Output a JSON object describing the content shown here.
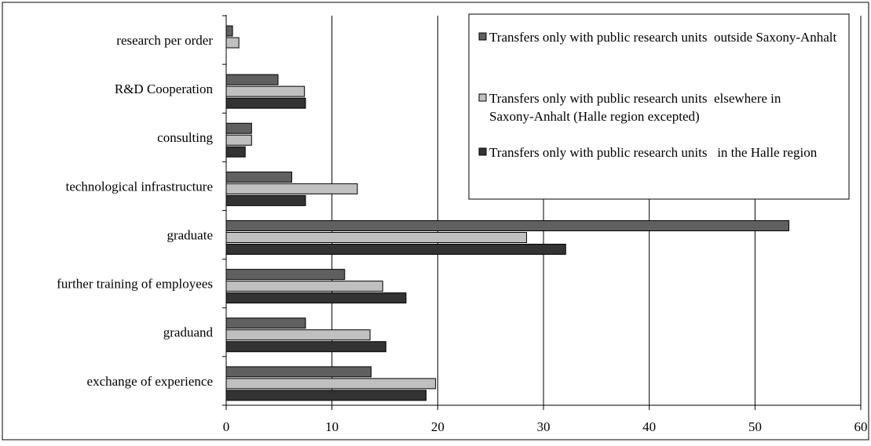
{
  "chart_data": {
    "type": "bar",
    "orientation": "horizontal",
    "categories": [
      "research per order",
      "R&D Cooperation",
      "consulting",
      "technological infrastructure",
      "graduate",
      "further training of employees",
      "graduand",
      "exchange of experience"
    ],
    "series": [
      {
        "name": "Transfers only with public research units  outside Saxony-Anhalt",
        "color": "#606060",
        "values": [
          0.6,
          4.9,
          2.4,
          6.2,
          53.2,
          11.2,
          7.5,
          13.7
        ]
      },
      {
        "name": "Transfers only with public research units  elsewhere in Saxony-Anhalt (Halle region excepted)",
        "color": "#c0c0c0",
        "values": [
          1.2,
          7.4,
          2.4,
          12.4,
          28.4,
          14.8,
          13.6,
          19.8
        ]
      },
      {
        "name": "Transfers only with public research units   in the Halle region",
        "color": "#333333",
        "values": [
          0,
          7.5,
          1.8,
          7.5,
          32.1,
          17.0,
          15.1,
          18.9
        ]
      }
    ],
    "xlim": [
      0,
      60
    ],
    "xticks": [
      0,
      10,
      20,
      30,
      40,
      50,
      60
    ],
    "grid": "vertical",
    "legend": "top-right",
    "title": "",
    "xlabel": "",
    "ylabel": ""
  }
}
